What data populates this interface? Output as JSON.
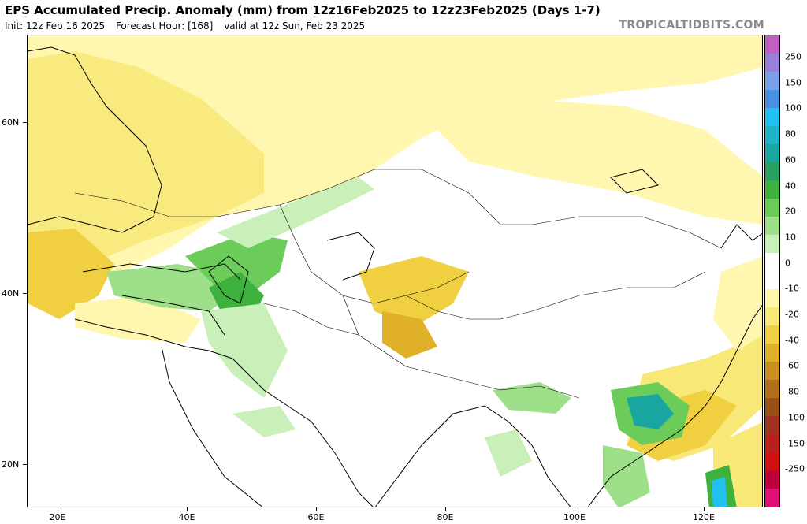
{
  "header": {
    "title": "EPS Accumulated Precip. Anomaly (mm) from 12z16Feb2025 to 12z23Feb2025 (Days 1-7)",
    "init": "Init: 12z Feb 16 2025",
    "forecast_hour": "Forecast Hour: [168]",
    "valid": "valid at 12z Sun, Feb 23 2025",
    "brand": "TROPICALTIDBITS.COM"
  },
  "axes": {
    "latitudes": [
      "60N",
      "40N",
      "20N"
    ],
    "longitudes": [
      "20E",
      "40E",
      "60E",
      "80E",
      "100E",
      "120E"
    ]
  },
  "colorbar": {
    "colors": [
      "#c060c0",
      "#9a7fd6",
      "#7aa0e8",
      "#4a90e0",
      "#20c0f0",
      "#1fb5c8",
      "#1aa6a0",
      "#2aa060",
      "#3eb23e",
      "#6ccc5a",
      "#9ee08a",
      "#c8f0b8",
      "#ffffff",
      "#ffffff",
      "#fff6b0",
      "#f8e878",
      "#f0d040",
      "#e0b028",
      "#c89020",
      "#b0701a",
      "#985018",
      "#a03020",
      "#b82020",
      "#d01010",
      "#c0003c",
      "#e01078"
    ],
    "labels": [
      "250",
      "150",
      "100",
      "80",
      "60",
      "40",
      "20",
      "10",
      "0",
      "-10",
      "-20",
      "-40",
      "-60",
      "-80",
      "-100",
      "-150",
      "-250"
    ]
  }
}
